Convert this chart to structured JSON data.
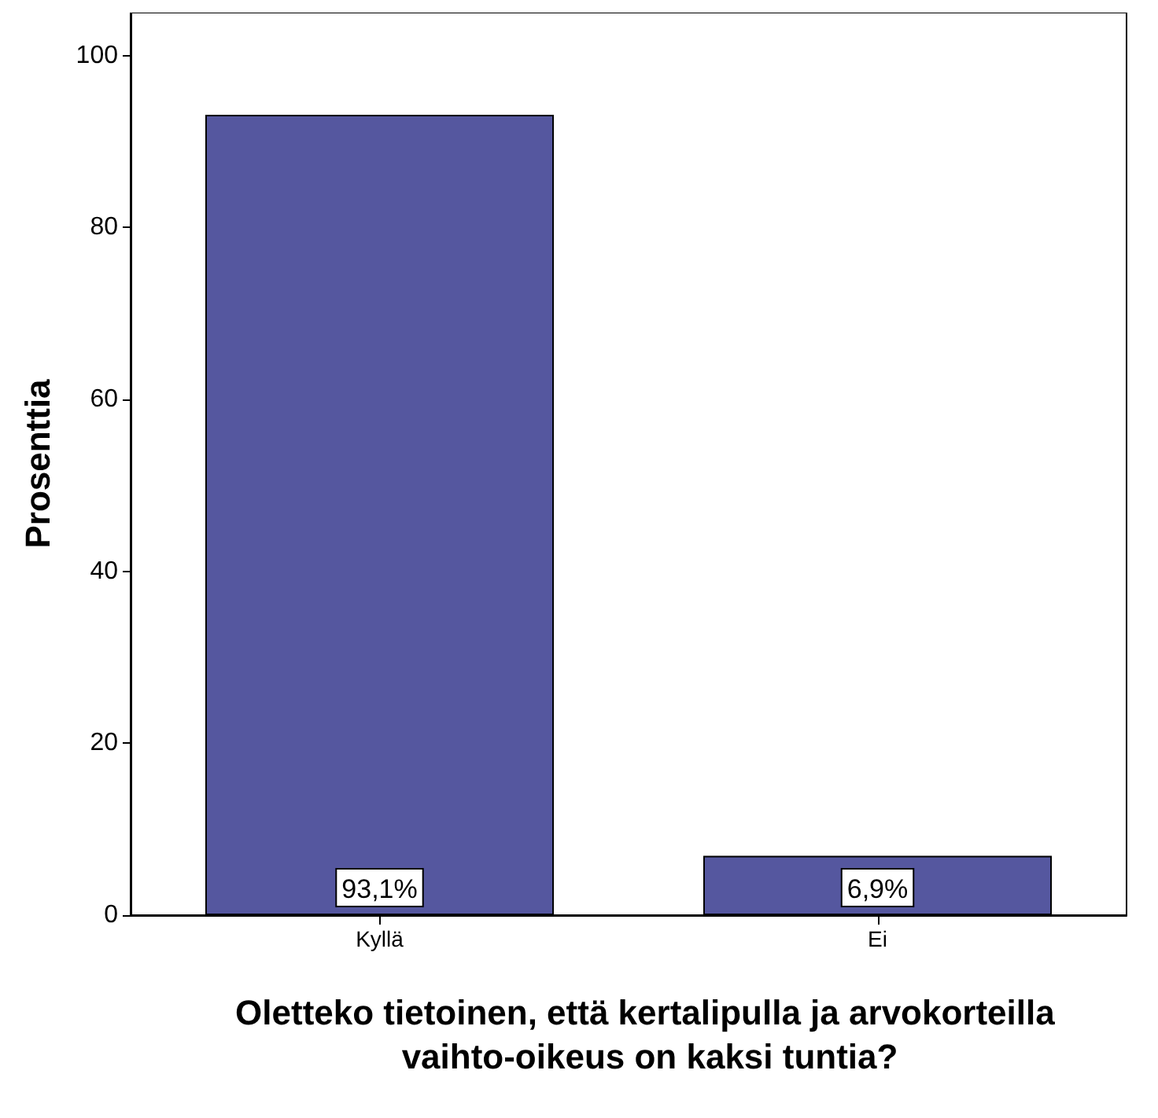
{
  "chart_data": {
    "type": "bar",
    "xlabel": "Oletteko tietoinen, että kertalipulla ja arvokorteilla vaihto-oikeus on kaksi tuntia?",
    "ylabel": "Prosenttia",
    "categories": [
      "Kyllä",
      "Ei"
    ],
    "values": [
      93.1,
      6.9
    ],
    "color": "#55579f",
    "value_labels": [
      "93,1%",
      "6,9%"
    ],
    "ylim": [
      0,
      105
    ],
    "yticks": [
      0,
      20,
      40,
      60,
      80,
      100
    ],
    "grid": false
  }
}
